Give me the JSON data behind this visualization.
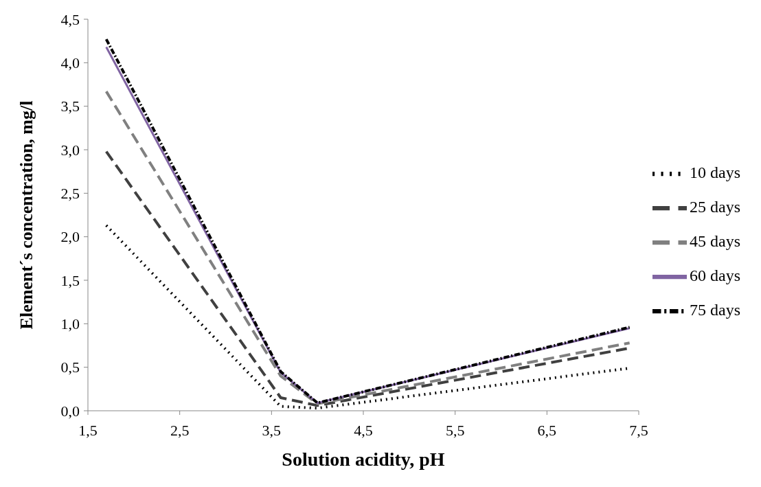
{
  "chart_data": {
    "type": "line",
    "xlabel": "Solution acidity, pH",
    "ylabel": "Element´s concentration, mg/l",
    "x": [
      1.7,
      3.6,
      4.0,
      7.4
    ],
    "xlim": [
      1.5,
      7.5
    ],
    "xticks": [
      {
        "value": 1.5,
        "label": "1,5"
      },
      {
        "value": 2.5,
        "label": "2,5"
      },
      {
        "value": 3.5,
        "label": "3,5"
      },
      {
        "value": 4.5,
        "label": "4,5"
      },
      {
        "value": 5.5,
        "label": "5,5"
      },
      {
        "value": 6.5,
        "label": "6,5"
      },
      {
        "value": 7.5,
        "label": "7,5"
      }
    ],
    "ylim": [
      0,
      4.5
    ],
    "yticks": [
      {
        "value": 0,
        "label": "0,0"
      },
      {
        "value": 0.5,
        "label": "0,5"
      },
      {
        "value": 1,
        "label": "1,0"
      },
      {
        "value": 1.5,
        "label": "1,5"
      },
      {
        "value": 2,
        "label": "2,0"
      },
      {
        "value": 2.5,
        "label": "2,5"
      },
      {
        "value": 3,
        "label": "3,0"
      },
      {
        "value": 3.5,
        "label": "3,5"
      },
      {
        "value": 4,
        "label": "4,0"
      },
      {
        "value": 4.5,
        "label": "4,5"
      }
    ],
    "grid": false,
    "legend": "right",
    "marker": "none",
    "series": [
      {
        "name": "10 days",
        "color": "#000000",
        "line_style": "dotted",
        "values": [
          2.13,
          0.05,
          0.03,
          0.49
        ]
      },
      {
        "name": "25 days",
        "color": "#404040",
        "line_style": "dashed",
        "values": [
          2.98,
          0.15,
          0.06,
          0.72
        ]
      },
      {
        "name": "45 days",
        "color": "#808080",
        "line_style": "dashed",
        "values": [
          3.67,
          0.4,
          0.08,
          0.78
        ]
      },
      {
        "name": "60 days",
        "color": "#8064a2",
        "line_style": "solid",
        "values": [
          4.18,
          0.44,
          0.09,
          0.95
        ]
      },
      {
        "name": "75 days",
        "color": "#000000",
        "line_style": "dashdot",
        "values": [
          4.27,
          0.45,
          0.09,
          0.96
        ]
      }
    ]
  }
}
